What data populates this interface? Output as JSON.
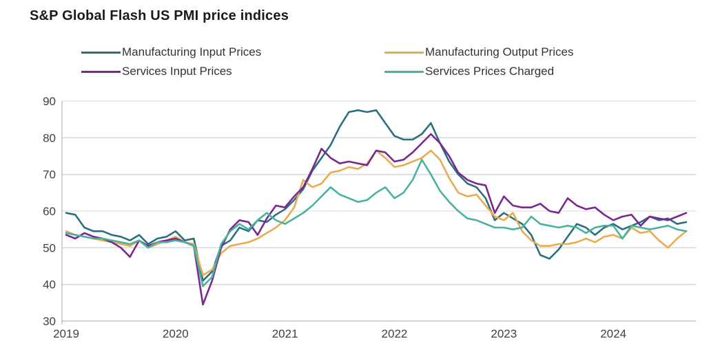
{
  "title": "S&P Global Flash US PMI price indices",
  "colors": {
    "gridline": "#d9d9d9",
    "axis": "#a6a6a6",
    "tick_text": "#404040",
    "title_text": "#1a1a1a",
    "legend_text": "#333333",
    "background": "#ffffff"
  },
  "chart_data": {
    "type": "line",
    "title": "S&P Global Flash US PMI price indices",
    "xlabel": "",
    "ylabel": "",
    "x_start": "2019-01",
    "x_end": "2024-09",
    "x_frequency": "monthly",
    "x_tick_labels": [
      "2019",
      "2020",
      "2021",
      "2022",
      "2023",
      "2024"
    ],
    "y_axis": {
      "min": 30,
      "max": 90,
      "ticks": [
        30,
        40,
        50,
        60,
        70,
        80,
        90
      ]
    },
    "grid": "horizontal-only",
    "legend_position": "top, two columns",
    "series": [
      {
        "name": "Manufacturing Input Prices",
        "color": "#2a6f80",
        "values": [
          59.5,
          59,
          55.5,
          54.5,
          54.5,
          53.5,
          53,
          52,
          53.5,
          51,
          52.5,
          53,
          54.5,
          52,
          52.5,
          41,
          43.5,
          50.5,
          52,
          55.5,
          54.5,
          57.5,
          57,
          59,
          60.5,
          63,
          66,
          71,
          74.5,
          78,
          83,
          87,
          87.5,
          87,
          87.5,
          84,
          80.5,
          79.5,
          79.5,
          81,
          84,
          78.5,
          73.5,
          70,
          67.5,
          66.5,
          63.5,
          57.5,
          59.5,
          58,
          56.5,
          53.5,
          48,
          47,
          49.5,
          53,
          56.5,
          55.5,
          53.5,
          55.5,
          56.5,
          55,
          56,
          57,
          58.5,
          57.5,
          58,
          56.5,
          57
        ]
      },
      {
        "name": "Manufacturing Output Prices",
        "color": "#e9ab4e",
        "values": [
          54.5,
          53.5,
          53,
          52.5,
          52,
          51.5,
          51,
          50.5,
          52,
          50,
          51,
          52,
          53,
          51.5,
          51,
          42.5,
          44,
          48.5,
          50.5,
          51,
          51.5,
          52.5,
          54,
          55.5,
          57.5,
          61,
          68.5,
          66.5,
          67.5,
          70.5,
          71,
          72,
          71.5,
          73,
          76.5,
          74.5,
          72,
          72.5,
          73.5,
          74.5,
          76.5,
          74,
          69,
          65,
          64,
          64.5,
          61.5,
          58.5,
          57.5,
          59.5,
          54.5,
          52,
          50.5,
          50.5,
          51,
          51,
          51.5,
          52.5,
          51.5,
          53,
          53.5,
          52.5,
          55.5,
          54,
          54.5,
          52,
          50,
          52.5,
          54.5
        ]
      },
      {
        "name": "Services Input Prices",
        "color": "#7b2790",
        "values": [
          53.5,
          52.5,
          54,
          53,
          52.5,
          51.5,
          50,
          47.5,
          52,
          50.5,
          51.5,
          52,
          52.5,
          51.5,
          50.5,
          34.5,
          41,
          50,
          55,
          57.5,
          57,
          53.5,
          58,
          61.5,
          61,
          64,
          66.5,
          71.5,
          77,
          74.5,
          73,
          73.5,
          73,
          72.5,
          76.5,
          76,
          73.5,
          74,
          76,
          78.5,
          81,
          78.5,
          75,
          70.5,
          68.5,
          67.5,
          67,
          59.5,
          64,
          61.5,
          61,
          61,
          62,
          60,
          59.5,
          63.5,
          61.5,
          60.5,
          61,
          59,
          57.5,
          58.5,
          59,
          56,
          58.5,
          58,
          57.5,
          58.5,
          59.5
        ]
      },
      {
        "name": "Services Prices Charged",
        "color": "#47b2a0",
        "values": [
          54,
          53.5,
          53,
          52.5,
          52.5,
          52,
          51.5,
          51,
          52,
          50,
          51.5,
          51.5,
          52,
          51.5,
          50.5,
          39.5,
          42,
          51,
          54.5,
          56.5,
          55,
          57.5,
          59.5,
          57.5,
          56.5,
          58,
          59.5,
          61.5,
          64,
          66.5,
          64.5,
          63.5,
          62.5,
          63,
          65,
          66.5,
          63.5,
          65,
          68.5,
          74,
          70,
          65.5,
          62.5,
          60,
          58,
          57.5,
          56.5,
          55.5,
          55.5,
          55,
          55.5,
          58.5,
          56.5,
          56,
          55.5,
          56,
          55.5,
          54,
          55.5,
          56,
          56,
          52.5,
          56,
          55.5,
          55,
          55.5,
          56,
          55,
          54.5
        ]
      }
    ]
  }
}
